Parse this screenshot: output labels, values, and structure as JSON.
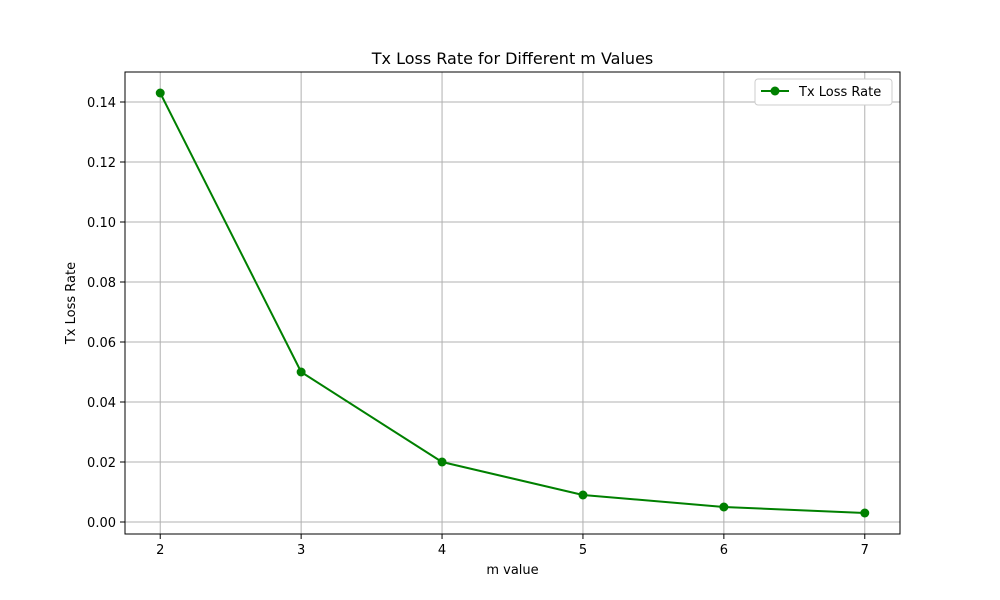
{
  "chart_data": {
    "type": "line",
    "title": "Tx Loss Rate for Different m Values",
    "xlabel": "m value",
    "ylabel": "Tx Loss Rate",
    "x": [
      2,
      3,
      4,
      5,
      6,
      7
    ],
    "series": [
      {
        "name": "Tx Loss Rate",
        "values": [
          0.143,
          0.05,
          0.02,
          0.009,
          0.005,
          0.003
        ],
        "color": "#008000",
        "marker": "circle"
      }
    ],
    "xlim": [
      1.75,
      7.25
    ],
    "ylim": [
      -0.004,
      0.15
    ],
    "xticks": [
      "2",
      "3",
      "4",
      "5",
      "6",
      "7"
    ],
    "yticks": [
      "0.00",
      "0.02",
      "0.04",
      "0.06",
      "0.08",
      "0.10",
      "0.12",
      "0.14"
    ],
    "grid": true,
    "legend_position": "top-right"
  }
}
